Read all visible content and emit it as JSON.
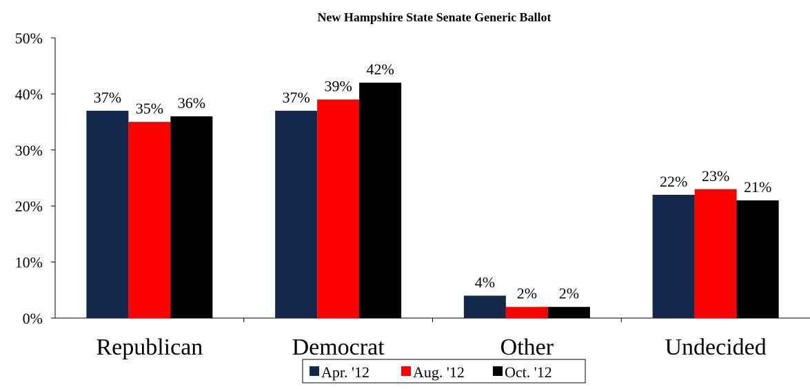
{
  "chart_data": {
    "type": "bar",
    "title": "New Hampshire State Senate Generic Ballot",
    "xlabel": "",
    "ylabel": "",
    "categories": [
      "Republican",
      "Democrat",
      "Other",
      "Undecided"
    ],
    "series": [
      {
        "name": "Apr. '12",
        "color": "#13284a",
        "values": [
          37,
          37,
          4,
          22
        ],
        "labels": [
          "37%",
          "37%",
          "4%",
          "22%"
        ]
      },
      {
        "name": "Aug. '12",
        "color": "#ff0000",
        "values": [
          35,
          39,
          2,
          23
        ],
        "labels": [
          "35%",
          "39%",
          "2%",
          "23%"
        ]
      },
      {
        "name": "Oct. '12",
        "color": "#000000",
        "values": [
          36,
          42,
          2,
          21
        ],
        "labels": [
          "36%",
          "42%",
          "2%",
          "21%"
        ]
      }
    ],
    "yticks": [
      "0%",
      "10%",
      "20%",
      "30%",
      "40%",
      "50%"
    ],
    "ylim": [
      0,
      50
    ],
    "grid": false,
    "legend_position": "bottom"
  }
}
